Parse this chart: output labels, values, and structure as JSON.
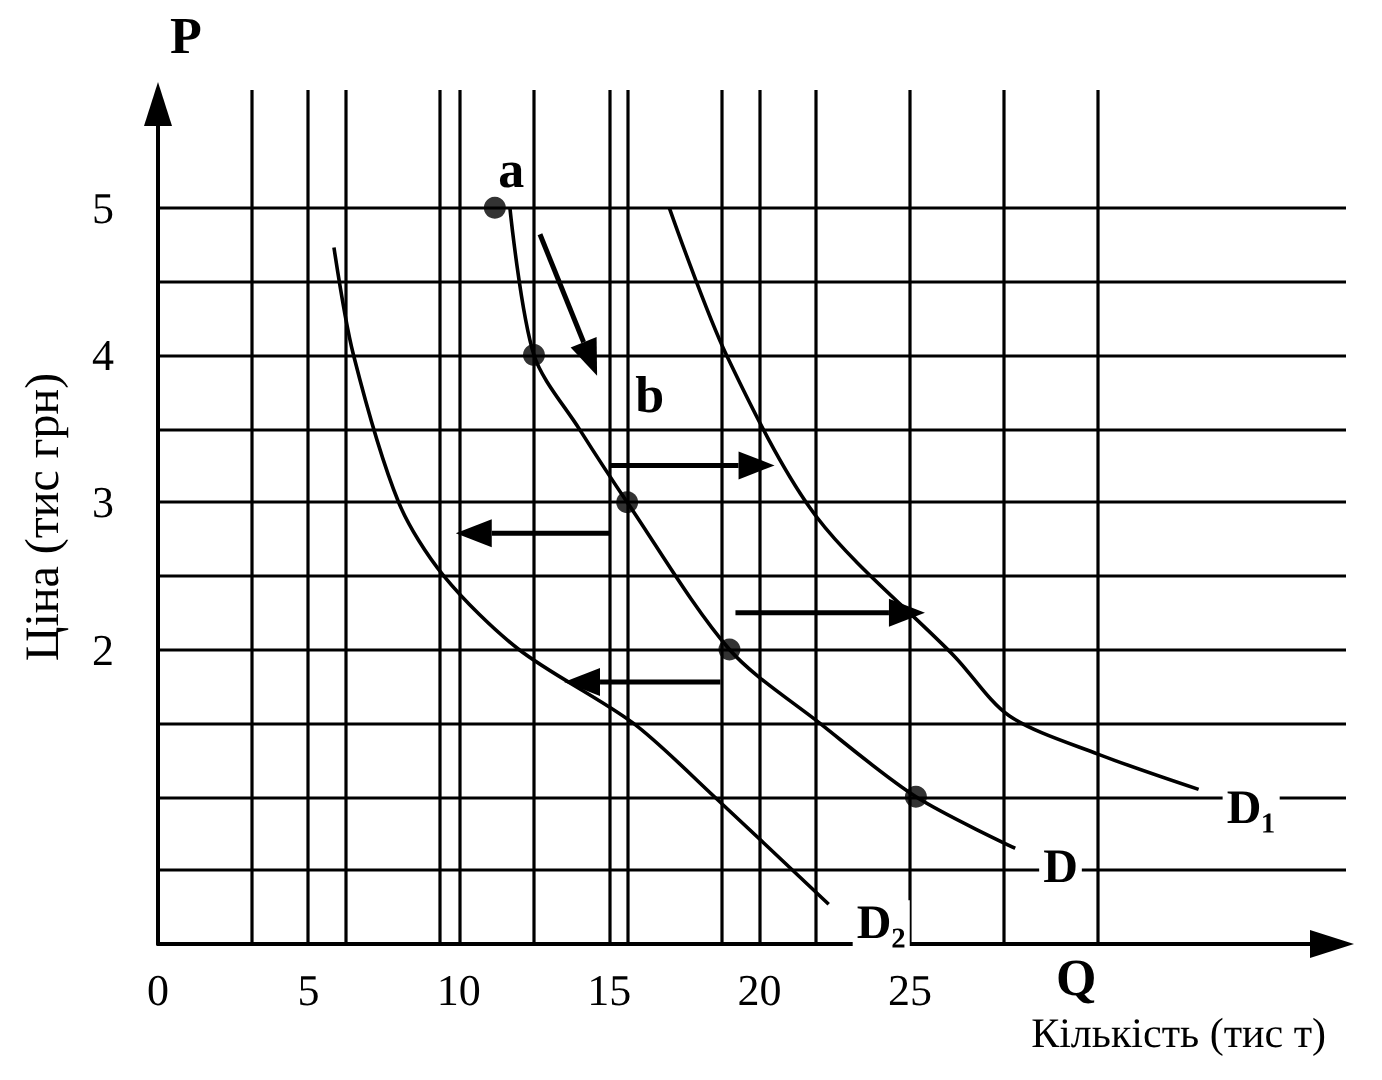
{
  "chart_data": {
    "type": "line",
    "xlabel": "Кількість (тис т)",
    "ylabel": "Ціна (тис грн)",
    "xlim": [
      0,
      39.5
    ],
    "ylim": [
      0,
      5.8
    ],
    "xticks": [
      0,
      {
        "value": 3.125,
        "label": null
      },
      5,
      {
        "value": 6.25,
        "label": null
      },
      {
        "value": 9.375,
        "label": null
      },
      10,
      {
        "value": 12.5,
        "label": null
      },
      15,
      {
        "value": 15.625,
        "label": null
      },
      {
        "value": 18.75,
        "label": null
      },
      20,
      {
        "value": 21.875,
        "label": null
      },
      25,
      {
        "value": 28.125,
        "label": null
      },
      {
        "value": 31.25,
        "label": null
      }
    ],
    "yticks": [
      {
        "value": 0.5,
        "label": null
      },
      {
        "value": 1,
        "label": null
      },
      {
        "value": 1.5,
        "label": null
      },
      2,
      {
        "value": 2.5,
        "label": null
      },
      3,
      {
        "value": 3.5,
        "label": null
      },
      4,
      {
        "value": 4.5,
        "label": null
      },
      5
    ],
    "grid": true,
    "legend": false,
    "series": [
      {
        "name": "D",
        "color": "#000000",
        "marker": "none",
        "x": [
          11.7,
          12.5,
          14.0,
          15.6,
          19.0,
          22.0,
          25.2,
          28.5
        ],
        "values": [
          5.0,
          4.0,
          3.5,
          3.0,
          2.0,
          1.5,
          1.0,
          0.65
        ]
      },
      {
        "name": "D₁",
        "color": "#000000",
        "marker": "none",
        "x": [
          17.0,
          18.9,
          21.9,
          26.5,
          28.3,
          31.25,
          34.6
        ],
        "values": [
          5.0,
          4.0,
          2.9,
          1.95,
          1.55,
          1.29,
          1.05
        ]
      },
      {
        "name": "D₂",
        "color": "#000000",
        "marker": "none",
        "x": [
          5.85,
          6.5,
          8.0,
          9.5,
          12.0,
          15.8,
          18.5,
          22.3
        ],
        "values": [
          4.73,
          4.0,
          3.0,
          2.5,
          2.0,
          1.5,
          1.0,
          0.27
        ]
      },
      {
        "type": "scatter",
        "color": "#000000",
        "marker": "circle",
        "x": [
          11.2,
          12.5,
          15.6,
          19.0,
          25.2
        ],
        "values": [
          5.0,
          4.0,
          3.0,
          2.0,
          1.0
        ]
      }
    ],
    "annotations": [
      "P",
      "Q",
      "a",
      "b"
    ]
  }
}
